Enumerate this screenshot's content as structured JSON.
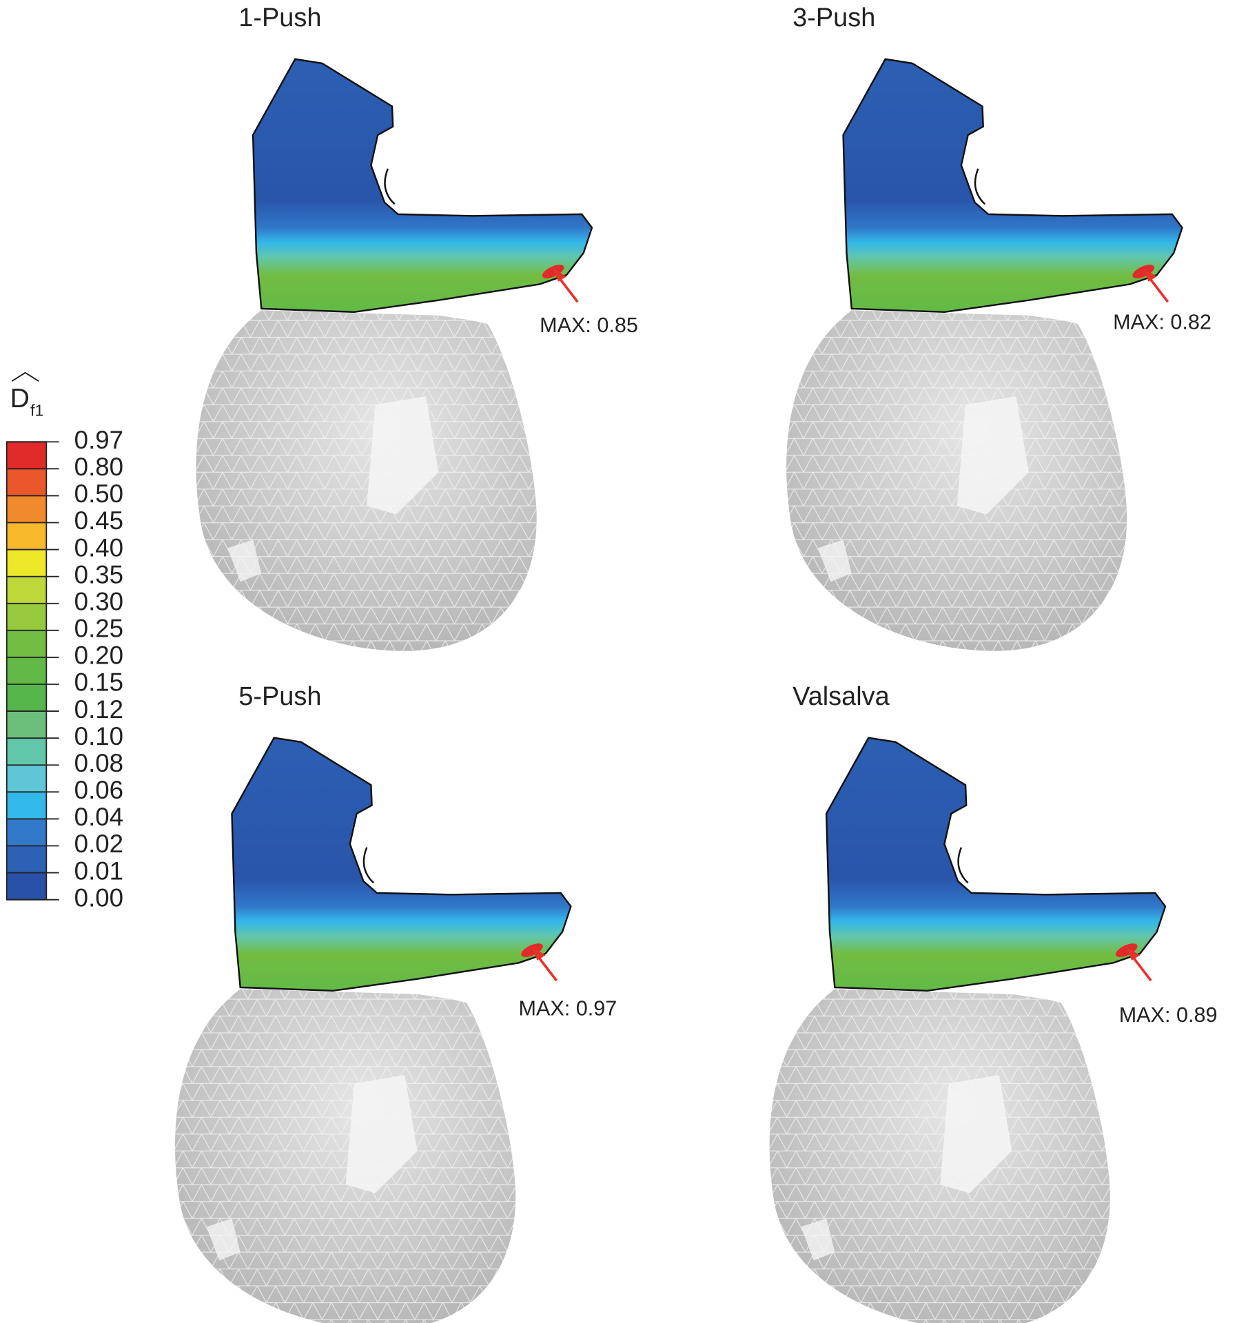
{
  "legend": {
    "title": "D",
    "title_subscript": "f1",
    "labels": [
      "0.97",
      "0.80",
      "0.50",
      "0.45",
      "0.40",
      "0.35",
      "0.30",
      "0.25",
      "0.20",
      "0.15",
      "0.12",
      "0.10",
      "0.08",
      "0.06",
      "0.04",
      "0.02",
      "0.01",
      "0.00"
    ],
    "colors": [
      "#e12b2b",
      "#e9572b",
      "#f08a2c",
      "#f8b92c",
      "#ede82a",
      "#bed83a",
      "#96c93d",
      "#72bd42",
      "#62b947",
      "#56b54b",
      "#6cbf7a",
      "#62c6ab",
      "#5ec6d6",
      "#33b8ea",
      "#3279c9",
      "#2c61b5",
      "#2951a9"
    ]
  },
  "panels": [
    {
      "title": "1-Push",
      "annotation": "MAX: 0.85"
    },
    {
      "title": "3-Push",
      "annotation": "MAX: 0.82"
    },
    {
      "title": "5-Push",
      "annotation": "MAX: 0.97"
    },
    {
      "title": "Valsalva",
      "annotation": "MAX: 0.89"
    }
  ]
}
